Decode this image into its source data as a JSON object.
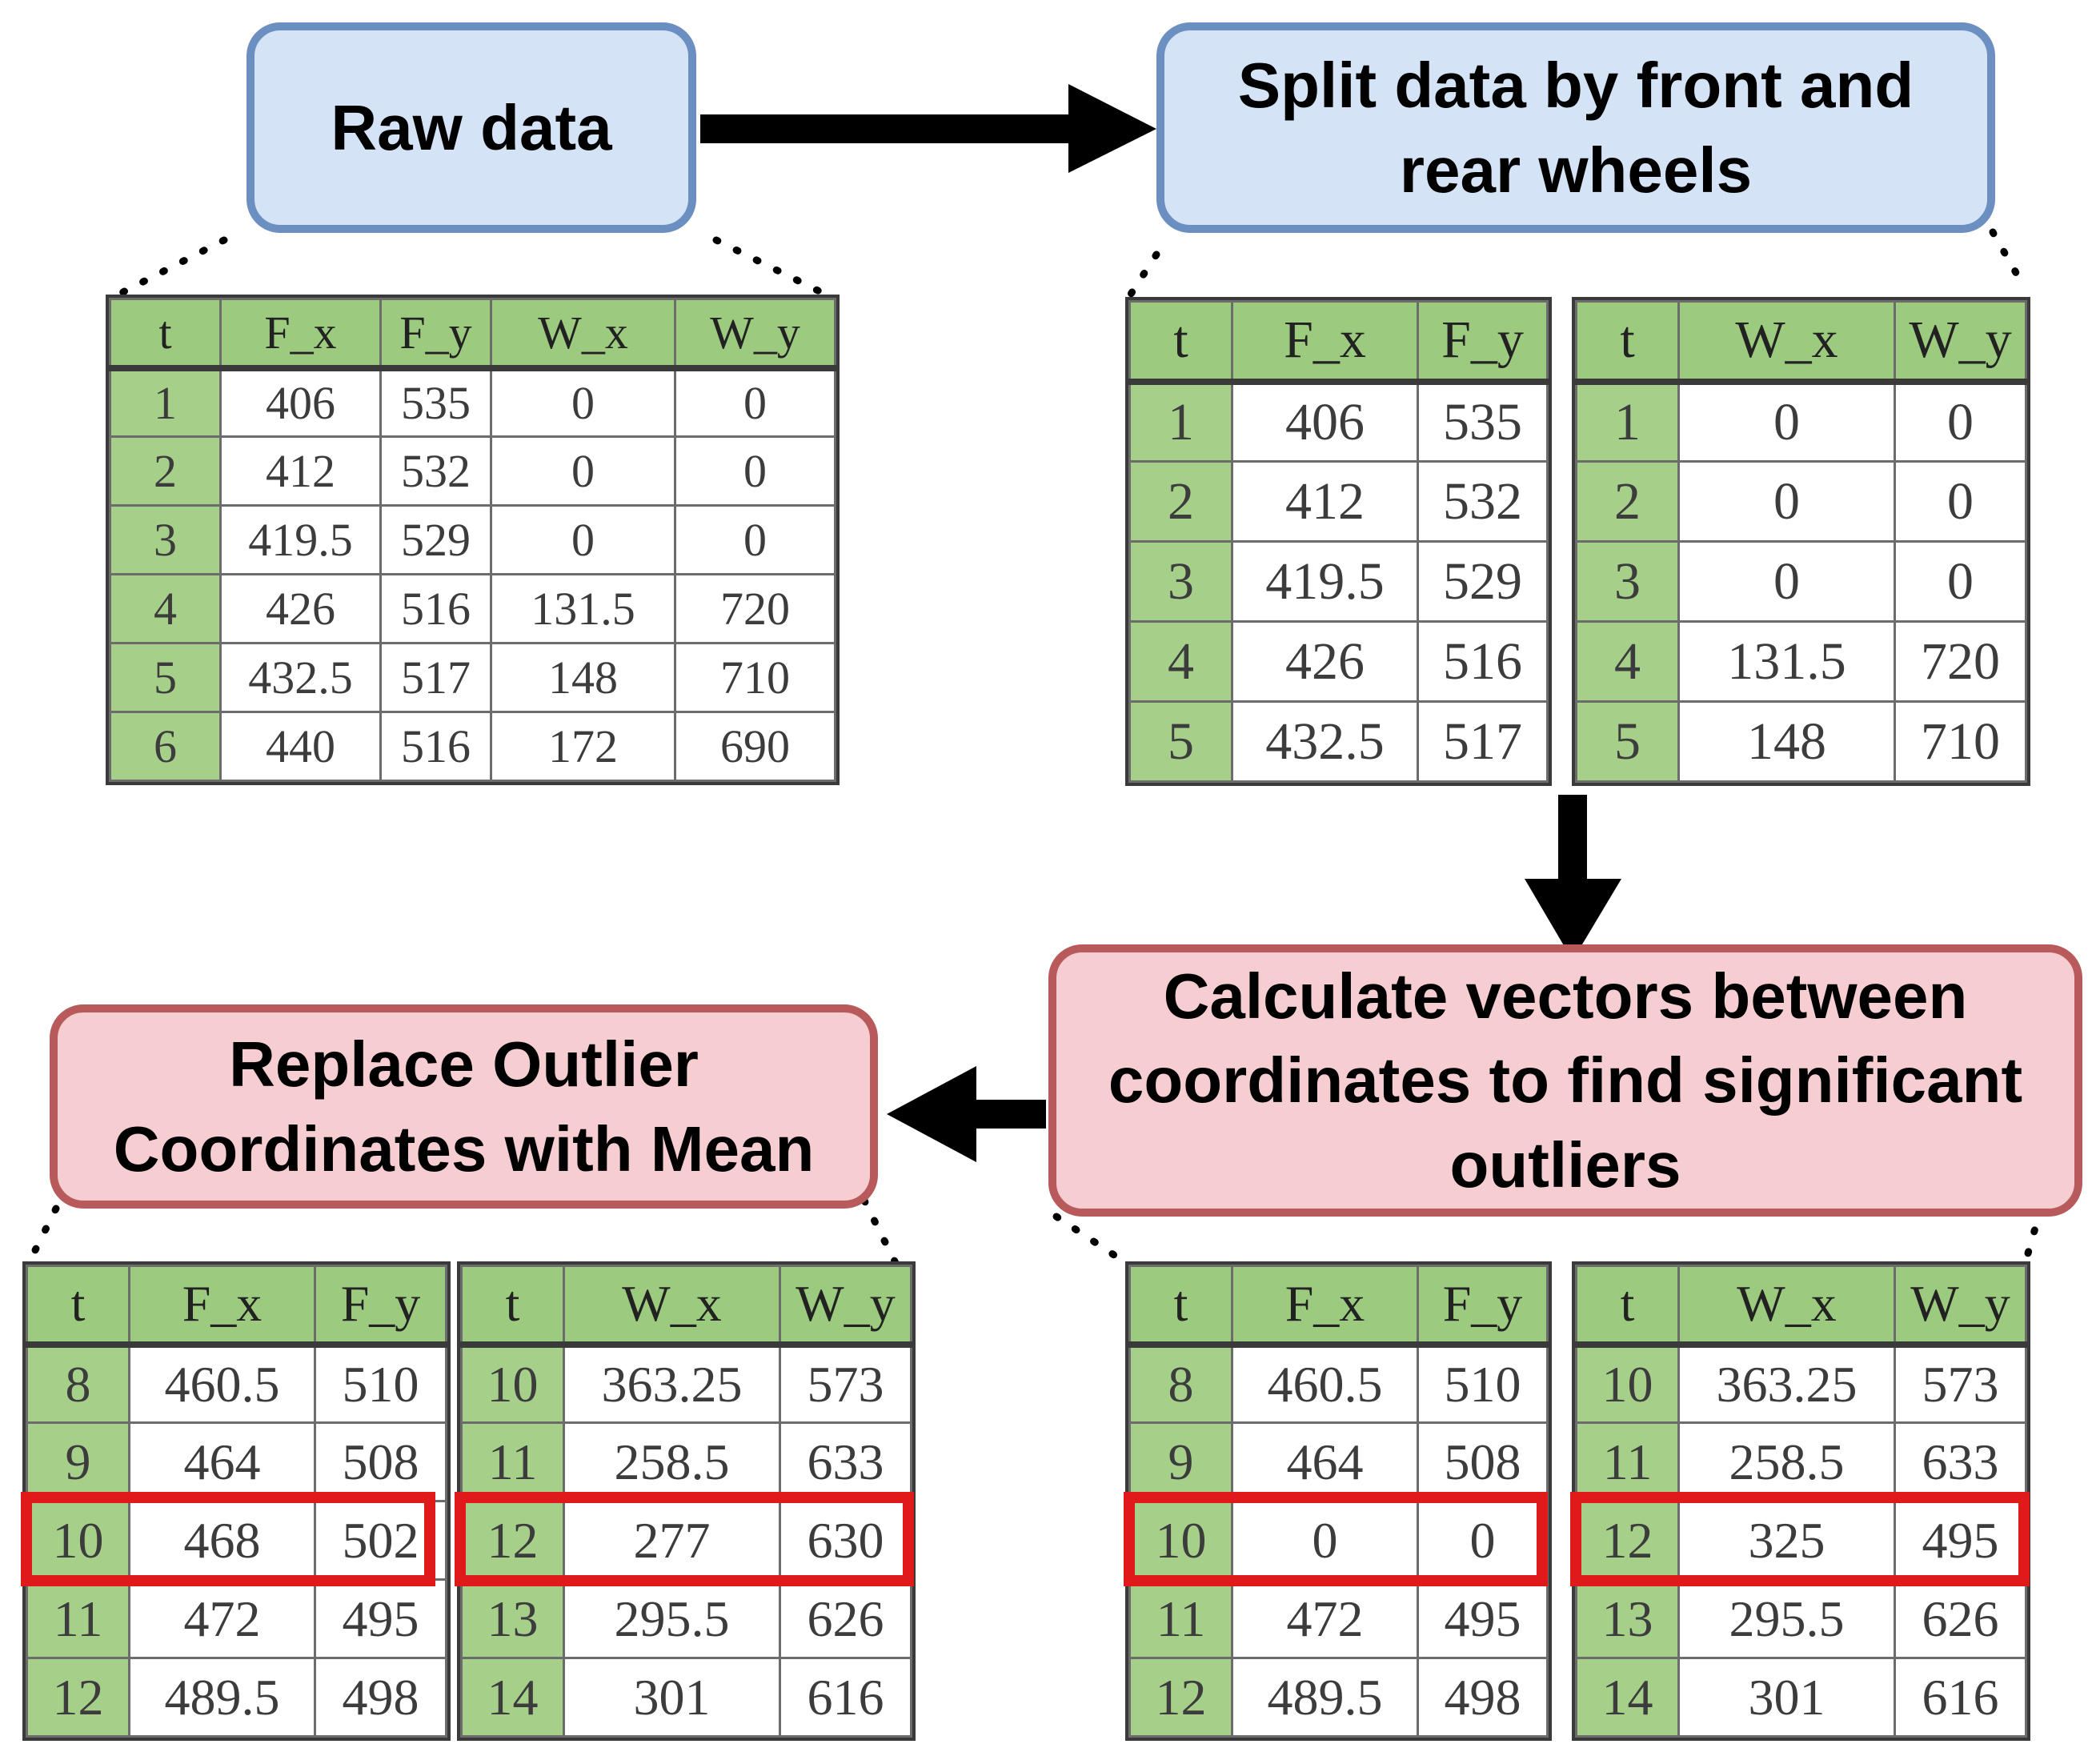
{
  "steps": {
    "raw": {
      "lines": [
        "Raw data"
      ]
    },
    "split": {
      "lines": [
        "Split data by front and",
        "rear wheels"
      ]
    },
    "calc": {
      "lines": [
        "Calculate vectors between",
        "coordinates to find significant",
        "outliers"
      ]
    },
    "replace": {
      "lines": [
        "Replace Outlier",
        "Coordinates with Mean"
      ]
    }
  },
  "tables": {
    "raw": {
      "headers": [
        "t",
        "F_x",
        "F_y",
        "W_x",
        "W_y"
      ],
      "rows": [
        [
          "1",
          "406",
          "535",
          "0",
          "0"
        ],
        [
          "2",
          "412",
          "532",
          "0",
          "0"
        ],
        [
          "3",
          "419.5",
          "529",
          "0",
          "0"
        ],
        [
          "4",
          "426",
          "516",
          "131.5",
          "720"
        ],
        [
          "5",
          "432.5",
          "517",
          "148",
          "710"
        ],
        [
          "6",
          "440",
          "516",
          "172",
          "690"
        ]
      ]
    },
    "split_front": {
      "headers": [
        "t",
        "F_x",
        "F_y"
      ],
      "rows": [
        [
          "1",
          "406",
          "535"
        ],
        [
          "2",
          "412",
          "532"
        ],
        [
          "3",
          "419.5",
          "529"
        ],
        [
          "4",
          "426",
          "516"
        ],
        [
          "5",
          "432.5",
          "517"
        ]
      ]
    },
    "split_rear": {
      "headers": [
        "t",
        "W_x",
        "W_y"
      ],
      "rows": [
        [
          "1",
          "0",
          "0"
        ],
        [
          "2",
          "0",
          "0"
        ],
        [
          "3",
          "0",
          "0"
        ],
        [
          "4",
          "131.5",
          "720"
        ],
        [
          "5",
          "148",
          "710"
        ]
      ]
    },
    "calc_front": {
      "headers": [
        "t",
        "F_x",
        "F_y"
      ],
      "rows": [
        [
          "8",
          "460.5",
          "510"
        ],
        [
          "9",
          "464",
          "508"
        ],
        [
          "10",
          "0",
          "0"
        ],
        [
          "11",
          "472",
          "495"
        ],
        [
          "12",
          "489.5",
          "498"
        ]
      ]
    },
    "calc_rear": {
      "headers": [
        "t",
        "W_x",
        "W_y"
      ],
      "rows": [
        [
          "10",
          "363.25",
          "573"
        ],
        [
          "11",
          "258.5",
          "633"
        ],
        [
          "12",
          "325",
          "495"
        ],
        [
          "13",
          "295.5",
          "626"
        ],
        [
          "14",
          "301",
          "616"
        ]
      ]
    },
    "replace_front": {
      "headers": [
        "t",
        "F_x",
        "F_y"
      ],
      "rows": [
        [
          "8",
          "460.5",
          "510"
        ],
        [
          "9",
          "464",
          "508"
        ],
        [
          "10",
          "468",
          "502"
        ],
        [
          "11",
          "472",
          "495"
        ],
        [
          "12",
          "489.5",
          "498"
        ]
      ]
    },
    "replace_rear": {
      "headers": [
        "t",
        "W_x",
        "W_y"
      ],
      "rows": [
        [
          "10",
          "363.25",
          "573"
        ],
        [
          "11",
          "258.5",
          "633"
        ],
        [
          "12",
          "277",
          "630"
        ],
        [
          "13",
          "295.5",
          "626"
        ],
        [
          "14",
          "301",
          "616"
        ]
      ]
    }
  },
  "colors": {
    "blue_fill": "#d4e3f6",
    "blue_border": "#6b8fc0",
    "red_fill": "#f6cdd0",
    "red_border": "#b85a5c",
    "header_green": "#9cca7e",
    "t_column_green": "#a6d08a",
    "highlight": "#e0191b"
  }
}
